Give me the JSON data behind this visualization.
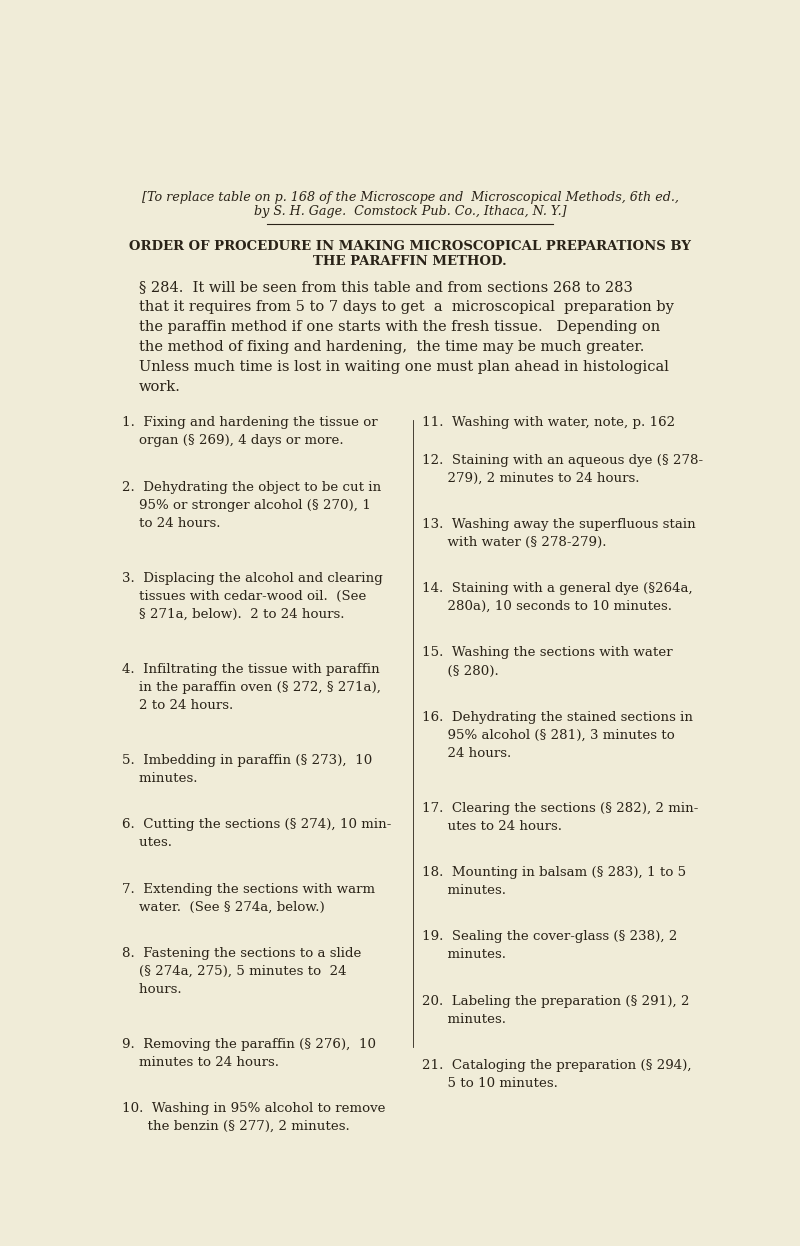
{
  "bg_color": "#f0ecd8",
  "text_color": "#2a2318",
  "header_italic": "[To replace table on p. 168 of the Microscope and  Microscopical Methods, 6th ed.,",
  "header_italic2": "by S. H. Gage.  Comstock Pub. Co., Ithaca, N. Y.]",
  "title1": "ORDER OF PROCEDURE IN MAKING MICROSCOPICAL PREPARATIONS BY",
  "title2": "THE PARAFFIN METHOD.",
  "left_texts": [
    "1.  Fixing and hardening the tissue or\n    organ (§ 269), 4 days or more.",
    "2.  Dehydrating the object to be cut in\n    95% or stronger alcohol (§ 270), 1\n    to 24 hours.",
    "3.  Displacing the alcohol and clearing\n    tissues with cedar-wood oil.  (See\n    § 271a, below).  2 to 24 hours.",
    "4.  Infiltrating the tissue with paraffin\n    in the paraffin oven (§ 272, § 271a),\n    2 to 24 hours.",
    "5.  Imbedding in paraffin (§ 273),  10\n    minutes.",
    "6.  Cutting the sections (§ 274), 10 min-\n    utes.",
    "7.  Extending the sections with warm\n    water.  (See § 274a, below.)",
    "8.  Fastening the sections to a slide\n    (§ 274a, 275), 5 minutes to  24\n    hours.",
    "9.  Removing the paraffin (§ 276),  10\n    minutes to 24 hours.",
    "10.  Washing in 95% alcohol to remove\n      the benzin (§ 277), 2 minutes."
  ],
  "left_line_counts": [
    2,
    3,
    3,
    3,
    2,
    2,
    2,
    3,
    2,
    2
  ],
  "right_texts": [
    "11.  Washing with water, note, p. 162",
    "12.  Staining with an aqueous dye (§ 278-\n      279), 2 minutes to 24 hours.",
    "13.  Washing away the superfluous stain\n      with water (§ 278-279).",
    "14.  Staining with a general dye (§264a,\n      280a), 10 seconds to 10 minutes.",
    "15.  Washing the sections with water\n      (§ 280).",
    "16.  Dehydrating the stained sections in\n      95% alcohol (§ 281), 3 minutes to\n      24 hours.",
    "17.  Clearing the sections (§ 282), 2 min-\n      utes to 24 hours.",
    "18.  Mounting in balsam (§ 283), 1 to 5\n      minutes.",
    "19.  Sealing the cover-glass (§ 238), 2\n      minutes.",
    "20.  Labeling the preparation (§ 291), 2\n      minutes.",
    "21.  Cataloging the preparation (§ 294),\n      5 to 10 minutes."
  ],
  "right_line_counts": [
    1,
    2,
    2,
    2,
    2,
    3,
    2,
    2,
    2,
    2,
    2
  ]
}
